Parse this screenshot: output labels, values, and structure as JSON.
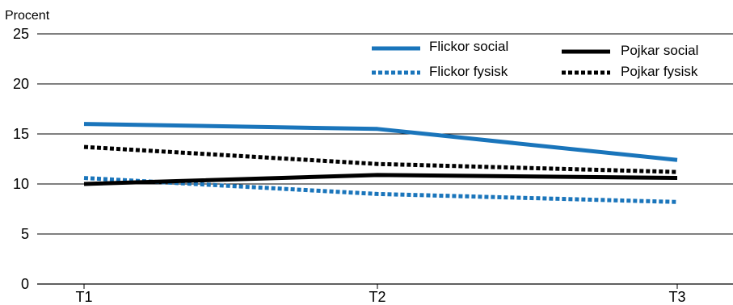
{
  "chart_data": {
    "type": "line",
    "title": "",
    "ylabel": "Procent",
    "xlabel": "",
    "categories": [
      "T1",
      "T2",
      "T3"
    ],
    "ylim": [
      0,
      25
    ],
    "yticks": [
      0,
      5,
      10,
      15,
      20,
      25
    ],
    "grid": true,
    "legend_position": "top-right",
    "series": [
      {
        "name": "Flickor social",
        "values": [
          16.0,
          15.5,
          12.4
        ],
        "color": "#1a75bb",
        "style": "solid"
      },
      {
        "name": "Flickor fysisk",
        "values": [
          10.6,
          9.0,
          8.2
        ],
        "color": "#1a75bb",
        "style": "dotted"
      },
      {
        "name": "Pojkar social",
        "values": [
          10.0,
          10.9,
          10.6
        ],
        "color": "#000000",
        "style": "solid"
      },
      {
        "name": "Pojkar fysisk",
        "values": [
          13.7,
          12.0,
          11.2
        ],
        "color": "#000000",
        "style": "dotted"
      }
    ]
  }
}
